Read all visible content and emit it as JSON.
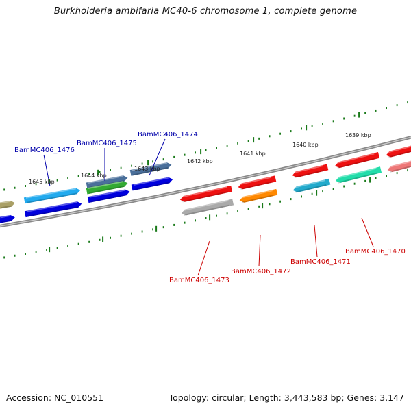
{
  "title": "Burkholderia ambifaria MC40-6 chromosome 1, complete genome",
  "footer": {
    "accession": "Accession: NC_010551",
    "summary": "Topology: circular; Length: 3,443,583 bp; Genes: 3,147"
  },
  "ticks": [
    "1645 kbp",
    "1644 kbp",
    "1643 kbp",
    "1642 kbp",
    "1641 kbp",
    "1640 kbp",
    "1639 kbp"
  ],
  "gene_labels": {
    "forward": [
      "BamMC406_1476",
      "BamMC406_1475",
      "BamMC406_1474"
    ],
    "reverse": [
      "BamMC406_1473",
      "BamMC406_1472",
      "BamMC406_1471",
      "BamMC406_1470"
    ]
  },
  "colors": {
    "forward_label": "#0000aa",
    "reverse_label": "#cc0000",
    "tick": "#1a7a1a",
    "backbone": "#777777",
    "red": "#ee1111",
    "blue": "#0000dd",
    "cyan": "#22aaee",
    "steel": "#4a6f9a",
    "green": "#33aa33",
    "orange": "#ff8800",
    "gray": "#aaaaaa",
    "teal": "#22aacc",
    "mint": "#22ddaa",
    "pink": "#ee7777",
    "olive": "#aaa066"
  }
}
